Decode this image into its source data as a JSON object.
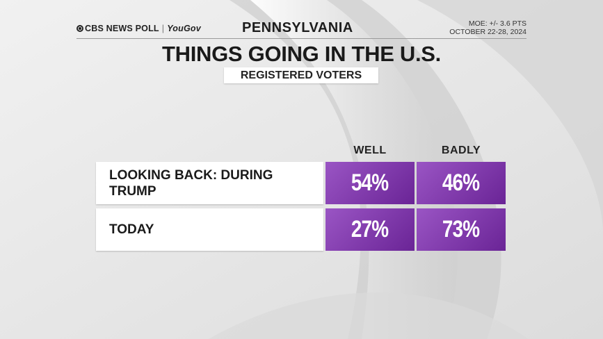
{
  "header": {
    "logo_text": "CBS NEWS POLL",
    "partner_text": "YouGov",
    "state": "PENNSYLVANIA",
    "moe": "MOE: +/- 3.6 PTS",
    "dates": "OCTOBER 22-28, 2024"
  },
  "colors": {
    "cell_gradient_start": "#9a55c4",
    "cell_gradient_end": "#6a2496",
    "row_bg": "#ffffff"
  },
  "chart_data": {
    "type": "table",
    "title": "THINGS GOING IN THE U.S.",
    "subtitle": "REGISTERED VOTERS",
    "columns": [
      "WELL",
      "BADLY"
    ],
    "rows": [
      {
        "label": "LOOKING BACK: DURING TRUMP",
        "values": [
          54,
          46
        ],
        "display": [
          "54%",
          "46%"
        ]
      },
      {
        "label": "TODAY",
        "values": [
          27,
          73
        ],
        "display": [
          "27%",
          "73%"
        ]
      }
    ],
    "unit": "%"
  }
}
